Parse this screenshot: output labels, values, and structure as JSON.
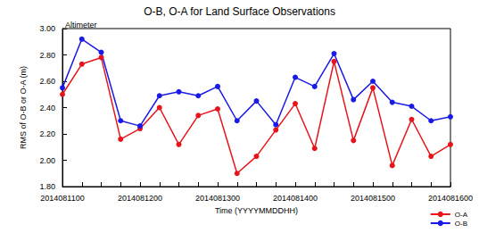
{
  "chart_data": {
    "type": "line",
    "title": "O-B, O-A for Land Surface Observations",
    "subtitle": "Altimeter",
    "x_label": "Time (YYYYMMDDHH)",
    "y_label": "RMS of O-B or O-A (m)",
    "categories": [
      "2014081100",
      null,
      null,
      null,
      "2014081200",
      null,
      null,
      null,
      "2014081300",
      null,
      null,
      null,
      "2014081400",
      null,
      null,
      null,
      "2014081500",
      null,
      null,
      null,
      "2014081600"
    ],
    "series": [
      {
        "name": "O-A",
        "color": "#e8141b",
        "marker": "circle",
        "values": [
          2.5,
          2.73,
          2.78,
          2.16,
          2.24,
          2.4,
          2.12,
          2.34,
          2.39,
          1.9,
          2.03,
          2.23,
          2.43,
          2.09,
          2.75,
          2.15,
          2.55,
          1.96,
          2.31,
          2.03,
          2.12
        ]
      },
      {
        "name": "O-B",
        "color": "#1a1ae6",
        "marker": "circle",
        "values": [
          2.55,
          2.92,
          2.82,
          2.3,
          2.26,
          2.49,
          2.52,
          2.49,
          2.56,
          2.3,
          2.45,
          2.27,
          2.63,
          2.56,
          2.81,
          2.46,
          2.6,
          2.44,
          2.41,
          2.3,
          2.33
        ]
      }
    ],
    "ylim": [
      1.8,
      3.0
    ],
    "yticks": [
      {
        "value": 1.8,
        "label": "1.80"
      },
      {
        "value": 2.0,
        "label": "2.00"
      },
      {
        "value": 2.2,
        "label": "2.20"
      },
      {
        "value": 2.4,
        "label": "2.40"
      },
      {
        "value": 2.6,
        "label": "2.60"
      },
      {
        "value": 2.8,
        "label": "2.80"
      },
      {
        "value": 3.0,
        "label": "3.00"
      }
    ],
    "grid": false,
    "legend": "lower right"
  }
}
